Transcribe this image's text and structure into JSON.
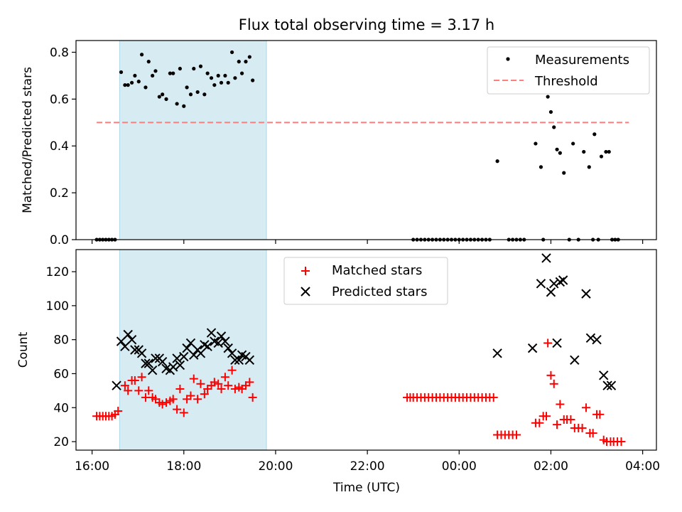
{
  "title": "Flux total observing time = 3.17 h",
  "colors": {
    "measure": "#000000",
    "threshold": "#ff7f7f",
    "matched": "#ff0000",
    "predicted": "#000000",
    "span": "#add8e6"
  },
  "chart_data": [
    {
      "type": "scatter",
      "panel": "top",
      "ylabel": "Matched/Predicted stars",
      "xlabel": "",
      "xlim": [
        "16:00",
        "04:00"
      ],
      "ylim": [
        0,
        0.85
      ],
      "yticks": [
        "0.0",
        "0.2",
        "0.4",
        "0.6",
        "0.8"
      ],
      "shaded_span": [
        "16:36",
        "19:48"
      ],
      "legend": {
        "location": "upper right",
        "entries": [
          "Measurements",
          "Threshold"
        ]
      },
      "threshold": {
        "name": "Threshold",
        "value": 0.5,
        "x_range": [
          "16:06",
          "03:42"
        ]
      },
      "series": [
        {
          "name": "Measurements",
          "marker": "dot",
          "points": [
            [
              "16:06",
              0.0
            ],
            [
              "16:10",
              0.0
            ],
            [
              "16:14",
              0.0
            ],
            [
              "16:18",
              0.0
            ],
            [
              "16:22",
              0.0
            ],
            [
              "16:26",
              0.0
            ],
            [
              "16:30",
              0.0
            ],
            [
              "16:38",
              0.715
            ],
            [
              "16:43",
              0.66
            ],
            [
              "16:47",
              0.66
            ],
            [
              "16:52",
              0.67
            ],
            [
              "16:56",
              0.7
            ],
            [
              "17:01",
              0.675
            ],
            [
              "17:05",
              0.79
            ],
            [
              "17:10",
              0.65
            ],
            [
              "17:14",
              0.76
            ],
            [
              "17:19",
              0.7
            ],
            [
              "17:23",
              0.72
            ],
            [
              "17:28",
              0.61
            ],
            [
              "17:32",
              0.62
            ],
            [
              "17:37",
              0.6
            ],
            [
              "17:42",
              0.71
            ],
            [
              "17:46",
              0.71
            ],
            [
              "17:51",
              0.58
            ],
            [
              "17:55",
              0.73
            ],
            [
              "18:00",
              0.57
            ],
            [
              "18:04",
              0.65
            ],
            [
              "18:09",
              0.62
            ],
            [
              "18:13",
              0.73
            ],
            [
              "18:18",
              0.63
            ],
            [
              "18:22",
              0.74
            ],
            [
              "18:27",
              0.62
            ],
            [
              "18:31",
              0.71
            ],
            [
              "18:36",
              0.69
            ],
            [
              "18:40",
              0.66
            ],
            [
              "18:45",
              0.7
            ],
            [
              "18:49",
              0.67
            ],
            [
              "18:54",
              0.7
            ],
            [
              "18:58",
              0.67
            ],
            [
              "19:03",
              0.8
            ],
            [
              "19:07",
              0.69
            ],
            [
              "19:12",
              0.76
            ],
            [
              "19:16",
              0.71
            ],
            [
              "19:21",
              0.76
            ],
            [
              "19:26",
              0.78
            ],
            [
              "19:30",
              0.68
            ],
            [
              "23:00",
              0.0
            ],
            [
              "23:05",
              0.0
            ],
            [
              "23:10",
              0.0
            ],
            [
              "23:15",
              0.0
            ],
            [
              "23:20",
              0.0
            ],
            [
              "23:25",
              0.0
            ],
            [
              "23:30",
              0.0
            ],
            [
              "23:35",
              0.0
            ],
            [
              "23:40",
              0.0
            ],
            [
              "23:45",
              0.0
            ],
            [
              "23:50",
              0.0
            ],
            [
              "23:55",
              0.0
            ],
            [
              "00:00",
              0.0
            ],
            [
              "00:05",
              0.0
            ],
            [
              "00:10",
              0.0
            ],
            [
              "00:15",
              0.0
            ],
            [
              "00:20",
              0.0
            ],
            [
              "00:25",
              0.0
            ],
            [
              "00:30",
              0.0
            ],
            [
              "00:35",
              0.0
            ],
            [
              "00:40",
              0.0
            ],
            [
              "00:50",
              0.335
            ],
            [
              "01:05",
              0.0
            ],
            [
              "01:10",
              0.0
            ],
            [
              "01:15",
              0.0
            ],
            [
              "01:20",
              0.0
            ],
            [
              "01:25",
              0.0
            ],
            [
              "01:40",
              0.41
            ],
            [
              "01:47",
              0.31
            ],
            [
              "01:50",
              0.0
            ],
            [
              "01:56",
              0.61
            ],
            [
              "02:00",
              0.545
            ],
            [
              "02:04",
              0.48
            ],
            [
              "02:08",
              0.385
            ],
            [
              "02:12",
              0.37
            ],
            [
              "02:17",
              0.285
            ],
            [
              "02:24",
              0.0
            ],
            [
              "02:29",
              0.41
            ],
            [
              "02:36",
              0.0
            ],
            [
              "02:43",
              0.375
            ],
            [
              "02:50",
              0.31
            ],
            [
              "02:55",
              0.0
            ],
            [
              "02:57",
              0.45
            ],
            [
              "03:02",
              0.0
            ],
            [
              "03:06",
              0.355
            ],
            [
              "03:12",
              0.375
            ],
            [
              "03:16",
              0.375
            ],
            [
              "03:20",
              0.0
            ],
            [
              "03:24",
              0.0
            ],
            [
              "03:28",
              0.0
            ]
          ]
        }
      ]
    },
    {
      "type": "scatter",
      "panel": "bottom",
      "ylabel": "Count",
      "xlabel": "Time (UTC)",
      "xlim": [
        "16:00",
        "04:00"
      ],
      "ylim": [
        15,
        133
      ],
      "yticks": [
        "20",
        "40",
        "60",
        "80",
        "100",
        "120"
      ],
      "xticks": [
        "16:00",
        "18:00",
        "20:00",
        "22:00",
        "00:00",
        "02:00",
        "04:00"
      ],
      "shaded_span": [
        "16:36",
        "19:48"
      ],
      "legend": {
        "location": "upper center",
        "entries": [
          "Matched stars",
          "Predicted stars"
        ]
      },
      "series": [
        {
          "name": "Matched stars",
          "marker": "plus",
          "points": [
            [
              "16:06",
              35
            ],
            [
              "16:10",
              35
            ],
            [
              "16:14",
              35
            ],
            [
              "16:18",
              35
            ],
            [
              "16:22",
              35
            ],
            [
              "16:26",
              35
            ],
            [
              "16:30",
              36
            ],
            [
              "16:34",
              38
            ],
            [
              "16:43",
              53
            ],
            [
              "16:47",
              50
            ],
            [
              "16:52",
              56
            ],
            [
              "16:56",
              56
            ],
            [
              "17:01",
              50
            ],
            [
              "17:05",
              58
            ],
            [
              "17:10",
              46
            ],
            [
              "17:14",
              50
            ],
            [
              "17:19",
              46
            ],
            [
              "17:23",
              45
            ],
            [
              "17:28",
              43
            ],
            [
              "17:32",
              42
            ],
            [
              "17:37",
              43
            ],
            [
              "17:42",
              44
            ],
            [
              "17:46",
              45
            ],
            [
              "17:51",
              39
            ],
            [
              "17:55",
              51
            ],
            [
              "18:00",
              37
            ],
            [
              "18:04",
              45
            ],
            [
              "18:09",
              47
            ],
            [
              "18:13",
              57
            ],
            [
              "18:18",
              45
            ],
            [
              "18:22",
              54
            ],
            [
              "18:27",
              48
            ],
            [
              "18:31",
              51
            ],
            [
              "18:36",
              53
            ],
            [
              "18:40",
              55
            ],
            [
              "18:45",
              54
            ],
            [
              "18:49",
              51
            ],
            [
              "18:54",
              58
            ],
            [
              "18:58",
              53
            ],
            [
              "19:03",
              62
            ],
            [
              "19:07",
              51
            ],
            [
              "19:12",
              52
            ],
            [
              "19:16",
              51
            ],
            [
              "19:21",
              53
            ],
            [
              "19:26",
              55
            ],
            [
              "19:30",
              46
            ],
            [
              "22:52",
              46
            ],
            [
              "22:56",
              46
            ],
            [
              "23:00",
              46
            ],
            [
              "23:05",
              46
            ],
            [
              "23:10",
              46
            ],
            [
              "23:15",
              46
            ],
            [
              "23:20",
              46
            ],
            [
              "23:25",
              46
            ],
            [
              "23:30",
              46
            ],
            [
              "23:35",
              46
            ],
            [
              "23:40",
              46
            ],
            [
              "23:45",
              46
            ],
            [
              "23:50",
              46
            ],
            [
              "23:55",
              46
            ],
            [
              "00:00",
              46
            ],
            [
              "00:05",
              46
            ],
            [
              "00:10",
              46
            ],
            [
              "00:15",
              46
            ],
            [
              "00:20",
              46
            ],
            [
              "00:25",
              46
            ],
            [
              "00:30",
              46
            ],
            [
              "00:35",
              46
            ],
            [
              "00:40",
              46
            ],
            [
              "00:45",
              46
            ],
            [
              "00:50",
              24
            ],
            [
              "00:55",
              24
            ],
            [
              "01:00",
              24
            ],
            [
              "01:05",
              24
            ],
            [
              "01:10",
              24
            ],
            [
              "01:15",
              24
            ],
            [
              "01:40",
              31
            ],
            [
              "01:45",
              31
            ],
            [
              "01:50",
              35
            ],
            [
              "01:54",
              35
            ],
            [
              "01:56",
              78
            ],
            [
              "02:00",
              59
            ],
            [
              "02:04",
              54
            ],
            [
              "02:08",
              30
            ],
            [
              "02:12",
              42
            ],
            [
              "02:17",
              33
            ],
            [
              "02:21",
              33
            ],
            [
              "02:26",
              33
            ],
            [
              "02:31",
              28
            ],
            [
              "02:36",
              28
            ],
            [
              "02:41",
              28
            ],
            [
              "02:46",
              40
            ],
            [
              "02:51",
              25
            ],
            [
              "02:55",
              25
            ],
            [
              "03:00",
              36
            ],
            [
              "03:04",
              36
            ],
            [
              "03:09",
              21
            ],
            [
              "03:13",
              20
            ],
            [
              "03:18",
              20
            ],
            [
              "03:22",
              20
            ],
            [
              "03:27",
              20
            ],
            [
              "03:32",
              20
            ]
          ]
        },
        {
          "name": "Predicted stars",
          "marker": "x",
          "points": [
            [
              "16:32",
              53
            ],
            [
              "16:38",
              79
            ],
            [
              "16:43",
              76
            ],
            [
              "16:47",
              83
            ],
            [
              "16:52",
              80
            ],
            [
              "16:56",
              74
            ],
            [
              "17:01",
              74
            ],
            [
              "17:05",
              72
            ],
            [
              "17:10",
              66
            ],
            [
              "17:14",
              66
            ],
            [
              "17:19",
              62
            ],
            [
              "17:23",
              69
            ],
            [
              "17:28",
              69
            ],
            [
              "17:32",
              67
            ],
            [
              "17:37",
              63
            ],
            [
              "17:42",
              62
            ],
            [
              "17:46",
              64
            ],
            [
              "17:51",
              69
            ],
            [
              "17:55",
              65
            ],
            [
              "18:00",
              70
            ],
            [
              "18:04",
              75
            ],
            [
              "18:09",
              78
            ],
            [
              "18:13",
              71
            ],
            [
              "18:18",
              74
            ],
            [
              "18:22",
              72
            ],
            [
              "18:27",
              77
            ],
            [
              "18:31",
              76
            ],
            [
              "18:36",
              84
            ],
            [
              "18:40",
              79
            ],
            [
              "18:45",
              78
            ],
            [
              "18:49",
              82
            ],
            [
              "18:54",
              79
            ],
            [
              "18:58",
              75
            ],
            [
              "19:03",
              72
            ],
            [
              "19:07",
              68
            ],
            [
              "19:12",
              68
            ],
            [
              "19:16",
              71
            ],
            [
              "19:21",
              70
            ],
            [
              "19:26",
              68
            ],
            [
              "00:50",
              72
            ],
            [
              "01:36",
              75
            ],
            [
              "01:47",
              113
            ],
            [
              "01:54",
              128
            ],
            [
              "02:00",
              108
            ],
            [
              "02:04",
              113
            ],
            [
              "02:08",
              78
            ],
            [
              "02:12",
              114
            ],
            [
              "02:16",
              115
            ],
            [
              "02:31",
              68
            ],
            [
              "02:46",
              107
            ],
            [
              "02:52",
              81
            ],
            [
              "03:00",
              80
            ],
            [
              "03:09",
              59
            ],
            [
              "03:14",
              53
            ],
            [
              "03:19",
              53
            ]
          ]
        }
      ]
    }
  ]
}
